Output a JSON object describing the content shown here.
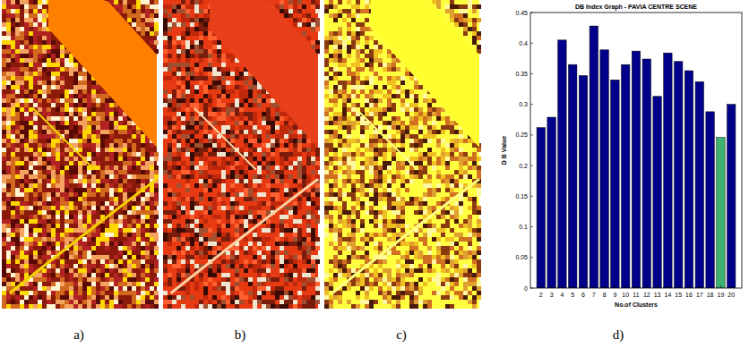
{
  "chart_data": {
    "type": "bar",
    "title": "DB Index Graph - PAVIA CENTRE SCENE",
    "x_label": "No.of Clusters",
    "y_label": "D B Value",
    "categories": [
      "2",
      "3",
      "4",
      "5",
      "6",
      "7",
      "8",
      "9",
      "10",
      "11",
      "12",
      "13",
      "14",
      "15",
      "16",
      "17",
      "18",
      "19",
      "20"
    ],
    "values": [
      0.262,
      0.279,
      0.405,
      0.365,
      0.347,
      0.428,
      0.389,
      0.34,
      0.365,
      0.387,
      0.374,
      0.313,
      0.384,
      0.37,
      0.355,
      0.337,
      0.288,
      0.246,
      0.3
    ],
    "colors": [
      "#00008b",
      "#00008b",
      "#00008b",
      "#00008b",
      "#00008b",
      "#00008b",
      "#00008b",
      "#00008b",
      "#00008b",
      "#00008b",
      "#00008b",
      "#00008b",
      "#00008b",
      "#00008b",
      "#00008b",
      "#00008b",
      "#00008b",
      "#3cb371",
      "#00008b"
    ],
    "ylim": [
      0,
      0.45
    ],
    "yticks": [
      0,
      0.05,
      0.1,
      0.15,
      0.2,
      0.25,
      0.3,
      0.35,
      0.4,
      0.45
    ],
    "grid": false
  },
  "panels": {
    "labels": [
      "a)",
      "b)",
      "c)",
      "d)"
    ]
  }
}
